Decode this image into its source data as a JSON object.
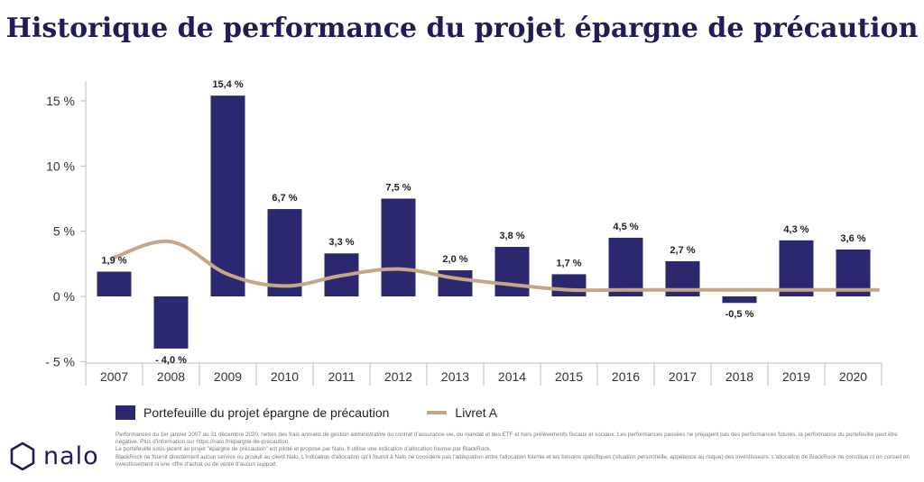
{
  "title": "Historique de performance du projet épargne de précaution",
  "chart_data": {
    "type": "bar",
    "categories": [
      "2007",
      "2008",
      "2009",
      "2010",
      "2011",
      "2012",
      "2013",
      "2014",
      "2015",
      "2016",
      "2017",
      "2018",
      "2019",
      "2020"
    ],
    "series": [
      {
        "name": "Portefeuille du projet épargne de précaution",
        "type": "bar",
        "color": "#2c2870",
        "values": [
          1.9,
          -4.0,
          15.4,
          6.7,
          3.3,
          7.5,
          2.0,
          3.8,
          1.7,
          4.5,
          2.7,
          -0.5,
          4.3,
          3.6
        ],
        "labels": [
          "1,9 %",
          "- 4,0 %",
          "15,4 %",
          "6,7 %",
          "3,3 %",
          "7,5 %",
          "2,0 %",
          "3,8 %",
          "1,7 %",
          "4,5 %",
          "2,7 %",
          "-0,5 %",
          "4,3 %",
          "3,6 %"
        ]
      },
      {
        "name": "Livret A",
        "type": "line",
        "color": "#c6a785",
        "values": [
          3.0,
          4.2,
          1.7,
          0.8,
          1.6,
          2.1,
          1.4,
          0.9,
          0.5,
          0.5,
          0.5,
          0.5,
          0.5,
          0.5
        ]
      }
    ],
    "ylim": [
      -5.3,
      16.6
    ],
    "yticks": [
      15,
      10,
      5,
      0,
      -5
    ],
    "ytick_labels": [
      "15 %",
      "10 %",
      "5 %",
      "0 %",
      "- 5 %"
    ],
    "grid": false,
    "legend_position": "bottom-left"
  },
  "legend": {
    "bar_label": "Portefeuille du projet épargne de précaution",
    "line_label": "Livret A"
  },
  "logo": {
    "text": "nalo"
  },
  "notes": [
    "Performances du 1er janvier 2007 au 31 décembre 2020, nettes des frais annuels de gestion administrative du contrat d'assurance-vie, du mandat et des ETF et hors prélèvements fiscaux et sociaux. Les performances passées ne préjugent pas des performances futures, la performance du portefeuille peut être négative. Plus d'information sur https://nalo.fr/epargne-de-precaution.",
    "Le portefeuille sous-jacent au projet \"épargne de précaution\" est piloté et proposé par Nalo. Il utilise une indication d'allocation fournie par BlackRock.",
    "BlackRock ne fournit directement aucun service ou produit au client Nalo. L'indication d'allocation qu'il fournit à Nalo ne considère pas l'adéquation entre l'allocation fournie et les besoins spécifiques (situation personnelle, appétence au risque) des investisseurs. L'allocation de BlackRock ne constitue ni un conseil en investissement ni une offre d'achat ou de vente d'aucun support."
  ],
  "colors": {
    "title": "#1f1d55",
    "bar": "#2c2870",
    "line": "#c6a785",
    "axis": "#bbbbbb"
  }
}
